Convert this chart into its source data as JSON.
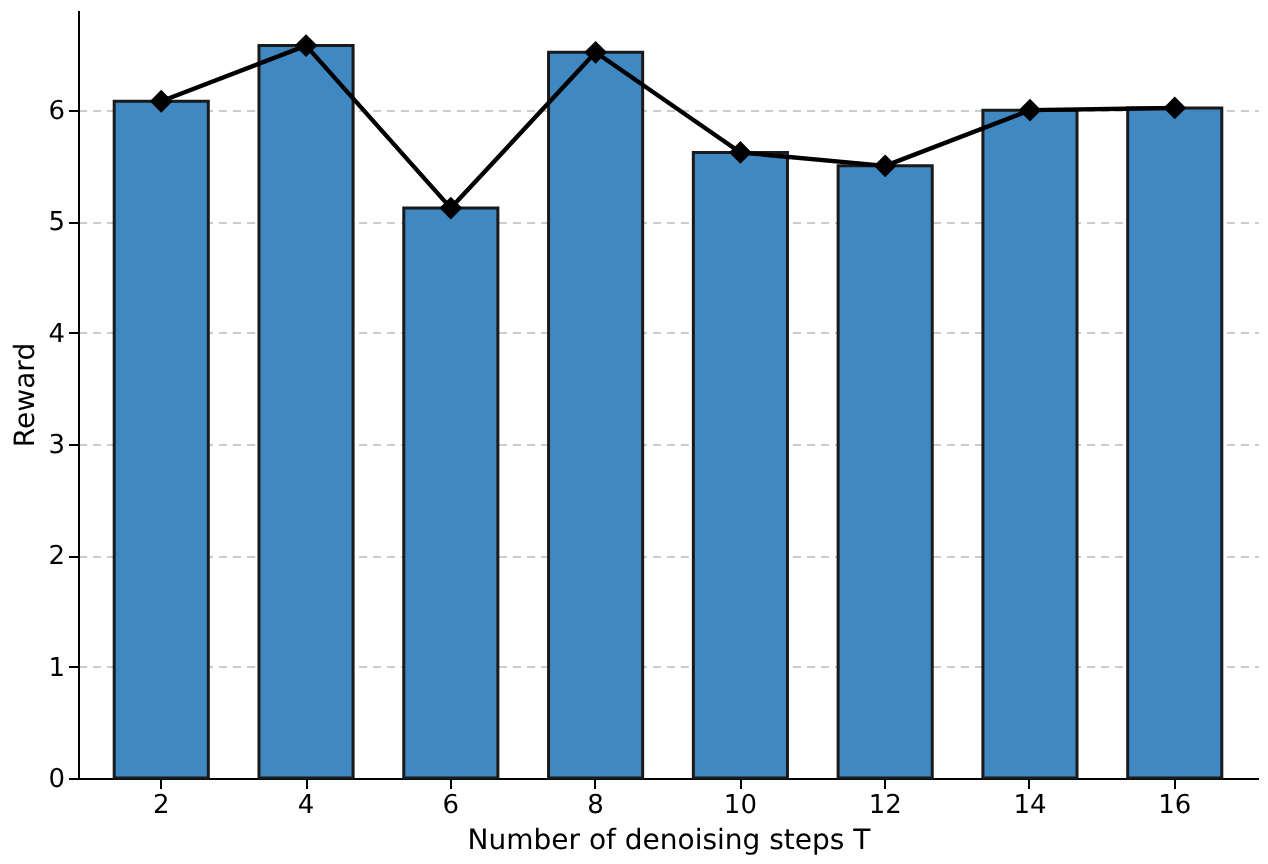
{
  "chart_data": {
    "type": "bar",
    "xlabel": "Number of denoising steps T",
    "ylabel": "Reward",
    "categories": [
      "2",
      "4",
      "6",
      "8",
      "10",
      "12",
      "14",
      "16"
    ],
    "series": [
      {
        "color": "#3f88c2",
        "values": [
          6.08,
          6.58,
          5.12,
          6.52,
          5.62,
          5.5,
          6.0,
          6.02
        ]
      },
      {
        "type": "line",
        "color": "#000000",
        "marker": "diamond",
        "line_style": "solid",
        "values": [
          6.08,
          6.58,
          5.12,
          6.52,
          5.62,
          5.5,
          6.0,
          6.02
        ]
      }
    ],
    "ylim": [
      0,
      6.9
    ],
    "yticks": [
      0,
      1,
      2,
      3,
      4,
      5,
      6
    ],
    "grid": "y"
  }
}
